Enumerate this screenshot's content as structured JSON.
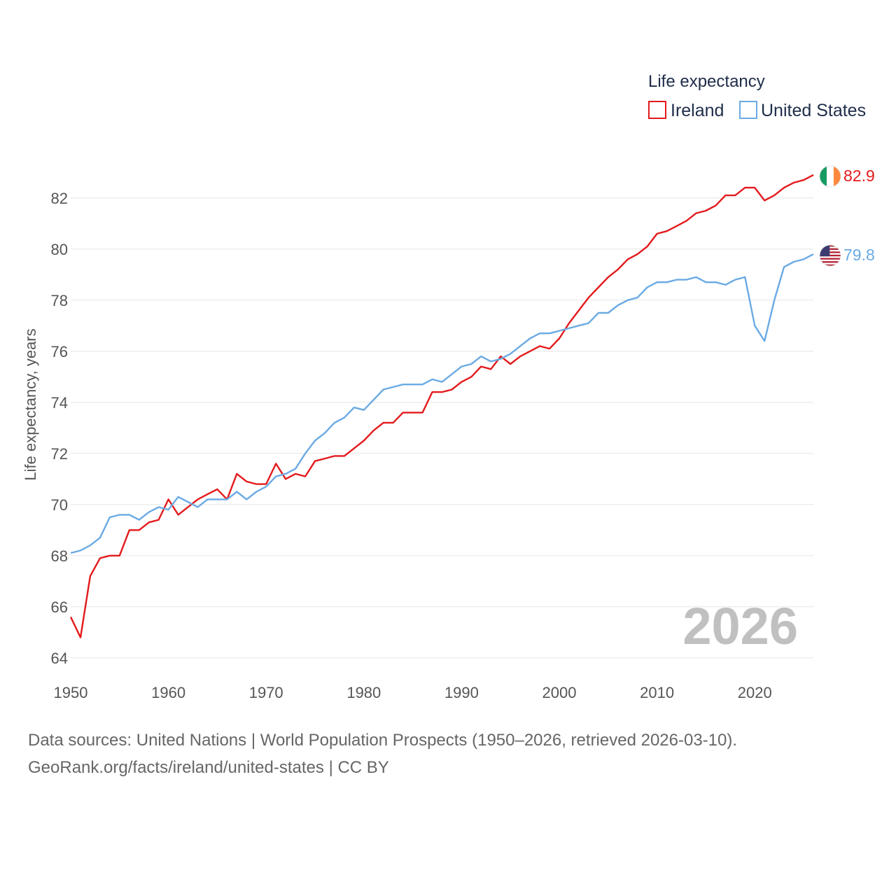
{
  "chart_data": {
    "type": "line",
    "title": "Life expectancy",
    "ylabel": "Life expectancy, years",
    "xlabel": "",
    "xlim": [
      1950,
      2026
    ],
    "ylim": [
      63.5,
      83.5
    ],
    "yticks": [
      64,
      66,
      68,
      70,
      72,
      74,
      76,
      78,
      80,
      82
    ],
    "xticks": [
      1950,
      1960,
      1970,
      1980,
      1990,
      2000,
      2010,
      2020
    ],
    "current_year": "2026",
    "legend_position": "top-right",
    "series": [
      {
        "name": "Ireland",
        "color": "#e31a1c",
        "end_label": "82.9",
        "flag": "ireland-flag",
        "x_start": 1950,
        "values": [
          65.6,
          64.8,
          67.2,
          67.9,
          68.0,
          68.0,
          69.0,
          69.0,
          69.3,
          69.4,
          70.2,
          69.6,
          69.9,
          70.2,
          70.4,
          70.6,
          70.2,
          71.2,
          70.9,
          70.8,
          70.8,
          71.6,
          71.0,
          71.2,
          71.1,
          71.7,
          71.8,
          71.9,
          71.9,
          72.2,
          72.5,
          72.9,
          73.2,
          73.2,
          73.6,
          73.6,
          73.6,
          74.4,
          74.4,
          74.5,
          74.8,
          75.0,
          75.4,
          75.3,
          75.8,
          75.5,
          75.8,
          76.0,
          76.2,
          76.1,
          76.5,
          77.1,
          77.6,
          78.1,
          78.5,
          78.9,
          79.2,
          79.6,
          79.8,
          80.1,
          80.6,
          80.7,
          80.9,
          81.1,
          81.4,
          81.5,
          81.7,
          82.1,
          82.1,
          82.4,
          82.4,
          81.9,
          82.1,
          82.4,
          82.6,
          82.7,
          82.9
        ]
      },
      {
        "name": "United States",
        "color": "#6aaae4",
        "end_label": "79.8",
        "flag": "us-flag",
        "x_start": 1950,
        "values": [
          68.1,
          68.2,
          68.4,
          68.7,
          69.5,
          69.6,
          69.6,
          69.4,
          69.7,
          69.9,
          69.8,
          70.3,
          70.1,
          69.9,
          70.2,
          70.2,
          70.2,
          70.5,
          70.2,
          70.5,
          70.7,
          71.1,
          71.2,
          71.4,
          72.0,
          72.5,
          72.8,
          73.2,
          73.4,
          73.8,
          73.7,
          74.1,
          74.5,
          74.6,
          74.7,
          74.7,
          74.7,
          74.9,
          74.8,
          75.1,
          75.4,
          75.5,
          75.8,
          75.6,
          75.7,
          75.9,
          76.2,
          76.5,
          76.7,
          76.7,
          76.8,
          76.9,
          77.0,
          77.1,
          77.5,
          77.5,
          77.8,
          78.0,
          78.1,
          78.5,
          78.7,
          78.7,
          78.8,
          78.8,
          78.9,
          78.7,
          78.7,
          78.6,
          78.8,
          78.9,
          77.0,
          76.4,
          78.0,
          79.3,
          79.5,
          79.6,
          79.8
        ]
      }
    ]
  },
  "footer": {
    "line1": "Data sources: United Nations | World Population Prospects (1950–2026, retrieved 2026-03-10).",
    "line2": "GeoRank.org/facts/ireland/united-states | CC BY"
  }
}
